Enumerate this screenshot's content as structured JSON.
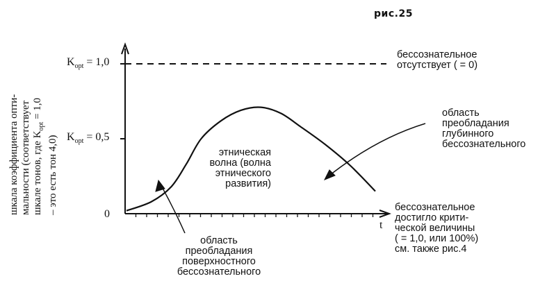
{
  "figure_number": "рис.25",
  "chart_data": {
    "type": "line",
    "y_label": {
      "line1": "шкала коэффициента опти-",
      "line2": "мальности (соответствует",
      "line3_pre": "шкале тонов, где K",
      "line3_sub": "opt",
      "line3_post": " = 1,0",
      "line4": "– это  есть тон 4,0)"
    },
    "x_label": "t",
    "ylim": [
      0,
      1.0
    ],
    "y_ticks": [
      {
        "value": 1.0,
        "pre": "K",
        "sub": "opt",
        "post": " = 1,0"
      },
      {
        "value": 0.5,
        "pre": "K",
        "sub": "opt",
        "post": " = 0,5"
      },
      {
        "value": 0,
        "text": "0"
      }
    ],
    "reference_line": {
      "y": 1.0,
      "style": "dashed"
    },
    "series": [
      {
        "x": [
          0.0,
          0.1,
          0.18,
          0.24,
          0.3,
          0.38,
          0.46,
          0.54,
          0.62,
          0.7,
          0.8,
          0.9,
          1.0
        ],
        "y": [
          0.02,
          0.08,
          0.18,
          0.33,
          0.5,
          0.62,
          0.69,
          0.71,
          0.67,
          0.58,
          0.46,
          0.32,
          0.15
        ]
      }
    ],
    "annotations": {
      "no_unconscious": [
        "бессознательное",
        "отсутствует ( = 0)"
      ],
      "deep_region": [
        "область",
        "преобладания",
        "глубинного",
        "бессознательного"
      ],
      "wave": [
        "этническая",
        "волна (волна",
        "этнического",
        "развития)"
      ],
      "critical": [
        "бессознательное",
        "достигло крити-",
        "ческой величины",
        "( = 1,0, или 100%)",
        "см. также рис.4"
      ],
      "surface_region": [
        "область",
        "преобладания",
        "поверхностного",
        "бессознательного"
      ]
    }
  },
  "colors": {
    "ink": "#111111",
    "paper": "#ffffff"
  }
}
